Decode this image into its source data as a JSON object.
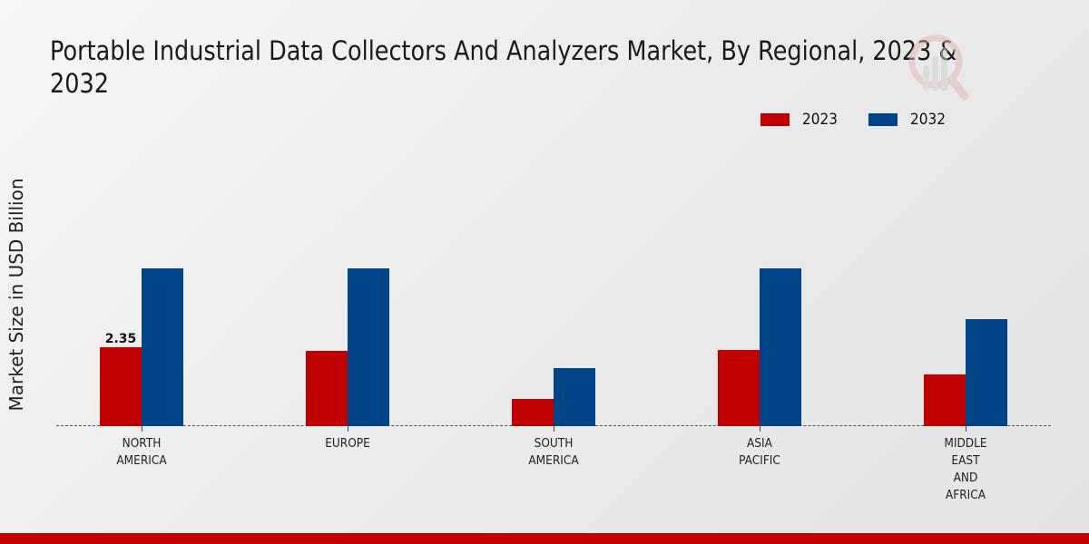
{
  "title": "Portable Industrial Data Collectors And Analyzers Market, By Regional, 2023 & 2032",
  "legend": [
    {
      "label": "2023",
      "color": "#c00000"
    },
    {
      "label": "2032",
      "color": "#004488"
    }
  ],
  "ylabel": "Market Size in USD Billion",
  "regions": [
    {
      "label": "NORTH\nAMERICA",
      "v2023": 2.35,
      "v2032": 4.7,
      "annotation": "2.35"
    },
    {
      "label": "EUROPE",
      "v2023": 2.24,
      "v2032": 4.7
    },
    {
      "label": "SOUTH\nAMERICA",
      "v2023": 0.81,
      "v2032": 1.73
    },
    {
      "label": "ASIA\nPACIFIC",
      "v2023": 2.27,
      "v2032": 4.7
    },
    {
      "label": "MIDDLE\nEAST\nAND\nAFRICA",
      "v2023": 1.54,
      "v2032": 3.19
    }
  ],
  "chart_data": {
    "type": "bar",
    "title": "Portable Industrial Data Collectors And Analyzers Market, By Regional, 2023 & 2032",
    "xlabel": "",
    "ylabel": "Market Size in USD Billion",
    "categories": [
      "NORTH AMERICA",
      "EUROPE",
      "SOUTH AMERICA",
      "ASIA PACIFIC",
      "MIDDLE EAST AND AFRICA"
    ],
    "series": [
      {
        "name": "2023",
        "color": "#c00000",
        "values": [
          2.35,
          2.24,
          0.81,
          2.27,
          1.54
        ]
      },
      {
        "name": "2032",
        "color": "#004488",
        "values": [
          4.7,
          4.7,
          1.73,
          4.7,
          3.19
        ]
      }
    ],
    "annotations": [
      {
        "category": "NORTH AMERICA",
        "series": "2023",
        "text": "2.35"
      }
    ],
    "ylim": [
      0,
      8.6
    ],
    "grid": false,
    "legend_position": "top-right"
  }
}
